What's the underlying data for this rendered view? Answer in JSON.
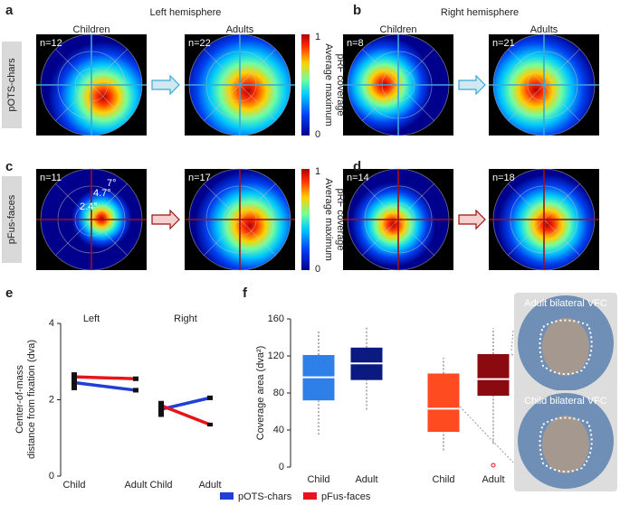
{
  "figure": {
    "panel_labels": [
      "a",
      "b",
      "c",
      "d",
      "e",
      "f"
    ],
    "hemispheres": [
      "Left hemisphere",
      "Right hemisphere"
    ],
    "groups": [
      "Children",
      "Adults",
      "Children",
      "Adults"
    ],
    "rows": [
      "pOTS-chars",
      "pFus-faces"
    ],
    "n": [
      [
        "n=12",
        "n=22",
        "n=8",
        "n=21"
      ],
      [
        "n=11",
        "n=17",
        "n=14",
        "n=18"
      ]
    ],
    "eccentricities": [
      "7°",
      "4.7°",
      "2.4°"
    ],
    "colorbar": {
      "max": "1",
      "min": "0",
      "label": [
        "Average maximum",
        "pRF coverage"
      ]
    },
    "vfc_labels": [
      "Adult bilateral VFC",
      "Child bilateral VFC"
    ]
  },
  "chart_data": [
    {
      "type": "line",
      "ylabel": [
        "Center-of-mass",
        "distance from fixation (dva)"
      ],
      "groups": [
        "Left",
        "Right"
      ],
      "categories": [
        "Child",
        "Adult",
        null,
        "Child",
        "Adult"
      ],
      "ylim": [
        0,
        4
      ],
      "yticks": [
        0,
        2,
        4
      ],
      "series": [
        {
          "name": "pOTS-chars",
          "color": "#1f3fd6",
          "values": [
            2.45,
            2.25,
            null,
            1.75,
            2.05
          ],
          "errors": [
            0.2,
            0.06,
            null,
            0.2,
            0.06
          ]
        },
        {
          "name": "pFus-faces",
          "color": "#e8141c",
          "values": [
            2.6,
            2.55,
            null,
            1.85,
            1.35
          ],
          "errors": [
            0.12,
            0.06,
            null,
            0.12,
            0.05
          ]
        }
      ]
    },
    {
      "type": "box",
      "ylabel": "Coverage area (dva²)",
      "categories": [
        "Child",
        "Adult",
        "Child",
        "Adult"
      ],
      "colors": [
        "#2f7fe8",
        "#0a1a80",
        "#ff4b1f",
        "#8b0a10"
      ],
      "ylim": [
        0,
        160
      ],
      "yticks": [
        0,
        40,
        80,
        120,
        160
      ],
      "min": [
        35,
        62,
        18,
        25
      ],
      "q1": [
        72,
        94,
        38,
        77
      ],
      "median": [
        97,
        112,
        63,
        95
      ],
      "q3": [
        121,
        129,
        101,
        122
      ],
      "max": [
        148,
        152,
        118,
        150
      ],
      "outliers": [
        [],
        [],
        [],
        [
          2
        ]
      ]
    }
  ]
}
